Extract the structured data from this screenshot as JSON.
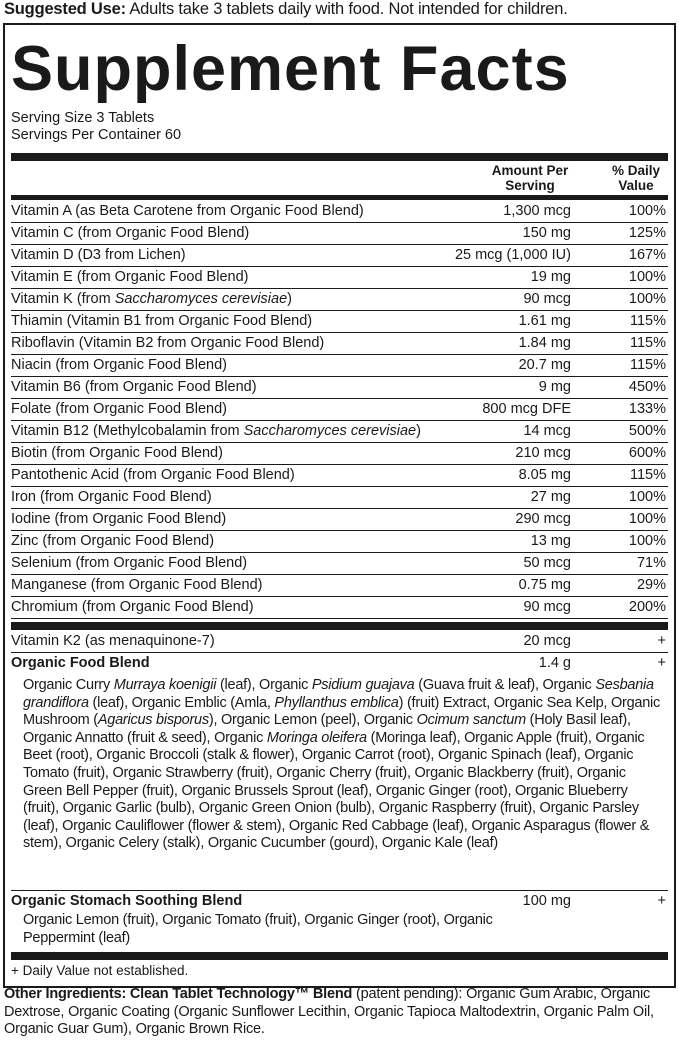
{
  "suggested_use": {
    "label": "Suggested Use:",
    "text": " Adults take 3 tablets daily with food. Not intended for children."
  },
  "title": "Supplement Facts",
  "serving_size": "Serving Size 3 Tablets",
  "servings_per_container": "Servings Per Container 60",
  "headers": {
    "amount": "Amount Per Serving",
    "dv": "% Daily Value"
  },
  "nutrients": [
    {
      "name": [
        {
          "t": "Vitamin A (as Beta Carotene from Organic Food Blend)"
        }
      ],
      "amount": "1,300 mcg",
      "dv": "100%"
    },
    {
      "name": [
        {
          "t": "Vitamin C (from Organic Food Blend)"
        }
      ],
      "amount": "150 mg",
      "dv": "125%"
    },
    {
      "name": [
        {
          "t": "Vitamin D (D3 from Lichen)"
        }
      ],
      "amount": "25 mcg (1,000 IU)",
      "dv": "167%"
    },
    {
      "name": [
        {
          "t": "Vitamin E (from Organic Food Blend)"
        }
      ],
      "amount": "19 mg",
      "dv": "100%"
    },
    {
      "name": [
        {
          "t": "Vitamin K (from "
        },
        {
          "t": "Saccharomyces cerevisiae",
          "i": true
        },
        {
          "t": ")"
        }
      ],
      "amount": "90 mcg",
      "dv": "100%"
    },
    {
      "name": [
        {
          "t": "Thiamin (Vitamin B1 from Organic Food Blend)"
        }
      ],
      "amount": "1.61 mg",
      "dv": "115%"
    },
    {
      "name": [
        {
          "t": "Riboflavin (Vitamin B2 from Organic Food Blend)"
        }
      ],
      "amount": "1.84 mg",
      "dv": "115%"
    },
    {
      "name": [
        {
          "t": "Niacin (from Organic Food Blend)"
        }
      ],
      "amount": "20.7 mg",
      "dv": "115%"
    },
    {
      "name": [
        {
          "t": "Vitamin B6 (from Organic Food Blend)"
        }
      ],
      "amount": "9 mg",
      "dv": "450%"
    },
    {
      "name": [
        {
          "t": "Folate (from Organic Food Blend)"
        }
      ],
      "amount": "800 mcg DFE",
      "dv": "133%"
    },
    {
      "name": [
        {
          "t": "Vitamin B12 (Methylcobalamin from "
        },
        {
          "t": "Saccharomyces cerevisiae",
          "i": true
        },
        {
          "t": ")"
        }
      ],
      "amount": "14 mcg",
      "dv": "500%"
    },
    {
      "name": [
        {
          "t": "Biotin (from Organic Food Blend)"
        }
      ],
      "amount": "210 mcg",
      "dv": "600%"
    },
    {
      "name": [
        {
          "t": "Pantothenic Acid (from Organic Food Blend)"
        }
      ],
      "amount": "8.05 mg",
      "dv": "115%"
    },
    {
      "name": [
        {
          "t": "Iron (from Organic Food Blend)"
        }
      ],
      "amount": "27 mg",
      "dv": "100%"
    },
    {
      "name": [
        {
          "t": "Iodine (from Organic Food Blend)"
        }
      ],
      "amount": "290 mcg",
      "dv": "100%"
    },
    {
      "name": [
        {
          "t": "Zinc (from Organic Food Blend)"
        }
      ],
      "amount": "13 mg",
      "dv": "100%"
    },
    {
      "name": [
        {
          "t": "Selenium (from Organic Food Blend)"
        }
      ],
      "amount": "50 mcg",
      "dv": "71%"
    },
    {
      "name": [
        {
          "t": "Manganese (from Organic Food Blend)"
        }
      ],
      "amount": "0.75 mg",
      "dv": "29%"
    },
    {
      "name": [
        {
          "t": "Chromium (from Organic Food Blend)"
        }
      ],
      "amount": "90 mcg",
      "dv": "200%"
    }
  ],
  "k2": {
    "name": "Vitamin K2 (as menaquinone-7)",
    "amount": "20 mcg",
    "dv": "+"
  },
  "food_blend": {
    "name": "Organic Food Blend",
    "amount": "1.4 g",
    "dv": "+",
    "ingredients": [
      {
        "t": "Organic Curry "
      },
      {
        "t": "Murraya koenigii",
        "i": true
      },
      {
        "t": " (leaf), Organic "
      },
      {
        "t": "Psidium guajava",
        "i": true
      },
      {
        "t": " (Guava fruit & leaf), Organic "
      },
      {
        "t": "Sesbania grandiflora",
        "i": true
      },
      {
        "t": " (leaf), Organic Emblic (Amla, "
      },
      {
        "t": "Phyllanthus emblica",
        "i": true
      },
      {
        "t": ") (fruit) Extract, Organic Sea Kelp, Organic Mushroom ("
      },
      {
        "t": "Agaricus bisporus",
        "i": true
      },
      {
        "t": "), Organic Lemon (peel), Organic "
      },
      {
        "t": "Ocimum sanctum",
        "i": true
      },
      {
        "t": " (Holy Basil leaf), Organic Annatto (fruit & seed), Organic "
      },
      {
        "t": "Moringa oleifera",
        "i": true
      },
      {
        "t": " (Moringa leaf), Organic Apple (fruit), Organic Beet (root), Organic Broccoli (stalk & flower), Organic Carrot (root), Organic Spinach (leaf), Organic Tomato (fruit), Organic Strawberry (fruit), Organic Cherry (fruit), Organic Blackberry (fruit), Organic Green Bell Pepper (fruit), Organic Brussels Sprout (leaf), Organic Ginger (root), Organic Blueberry (fruit), Organic Garlic (bulb), Organic Green Onion (bulb), Organic Raspberry (fruit), Organic Parsley (leaf), Organic Cauliflower (flower & stem), Organic Red Cabbage (leaf), Organic Asparagus (flower & stem), Organic Celery (stalk), Organic Cucumber (gourd), Organic Kale (leaf)"
      }
    ]
  },
  "stomach_blend": {
    "name": "Organic Stomach Soothing Blend",
    "amount": "100 mg",
    "dv": "+",
    "ingredients": "Organic Lemon (fruit), Organic Tomato (fruit), Organic Ginger (root), Organic Peppermint (leaf)"
  },
  "footnote": "+ Daily Value not established.",
  "other_ingredients": {
    "label": "Other Ingredients: Clean Tablet Technology™ Blend",
    "text": " (patent pending): Organic Gum Arabic, Organic Dextrose, Organic Coating (Organic Sunflower Lecithin, Organic Tapioca Maltodextrin, Organic Palm Oil, Organic Guar Gum), Organic Brown Rice."
  }
}
